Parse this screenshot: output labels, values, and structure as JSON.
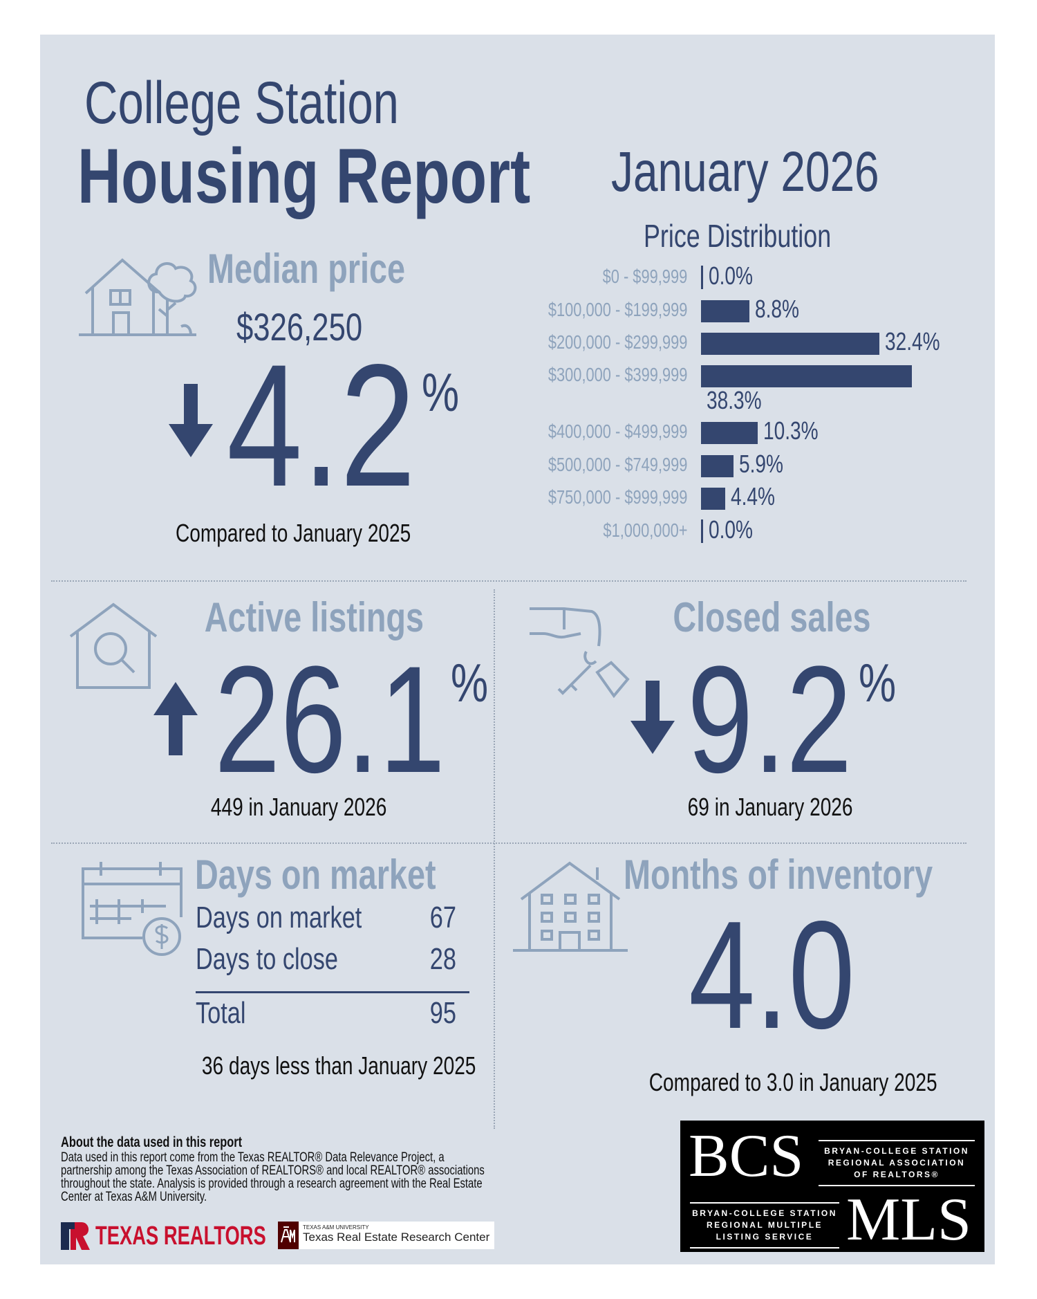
{
  "header": {
    "city": "College Station",
    "title": "Housing Report",
    "period": "January 2026"
  },
  "price_distribution": {
    "title": "Price Distribution",
    "rows": [
      {
        "label": "$0 - $99,999",
        "value": 0.0,
        "text": "0.0%"
      },
      {
        "label": "$100,000 - $199,999",
        "value": 8.8,
        "text": "8.8%"
      },
      {
        "label": "$200,000 - $299,999",
        "value": 32.4,
        "text": "32.4%"
      },
      {
        "label": "$300,000 - $399,999",
        "value": 38.3,
        "text": "38.3%"
      },
      {
        "label": "$400,000 - $499,999",
        "value": 10.3,
        "text": "10.3%"
      },
      {
        "label": "$500,000 - $749,999",
        "value": 5.9,
        "text": "5.9%"
      },
      {
        "label": "$750,000 - $999,999",
        "value": 4.4,
        "text": "4.4%"
      },
      {
        "label": "$1,000,000+",
        "value": 0.0,
        "text": "0.0%"
      }
    ]
  },
  "median": {
    "title": "Median price",
    "price": "$326,250",
    "change": "4.2",
    "pct": "%",
    "direction": "down",
    "note": "Compared to January 2025"
  },
  "active": {
    "title": "Active listings",
    "change": "26.1",
    "pct": "%",
    "direction": "up",
    "note": "449 in January 2026"
  },
  "closed": {
    "title": "Closed sales",
    "change": "9.2",
    "pct": "%",
    "direction": "down",
    "note": "69 in January 2026"
  },
  "dom": {
    "title": "Days on market",
    "rows": [
      {
        "label": "Days on market",
        "value": "67"
      },
      {
        "label": "Days to close",
        "value": "28"
      }
    ],
    "total_label": "Total",
    "total_value": "95",
    "note": "36 days less than January 2025"
  },
  "inventory": {
    "title": "Months of inventory",
    "value": "4.0",
    "note": "Compared to 3.0 in January 2025"
  },
  "about": {
    "title": "About the data used in this report",
    "body": "Data used in this report come from the Texas REALTOR® Data Relevance Project, a partnership among the Texas Association of REALTORS® and local REALTOR® associations throughout the state. Analysis is provided through a research agreement with the Real Estate Center at Texas A&M University."
  },
  "logos": {
    "texas_realtors": "TEXAS REALTORS",
    "tamu_small": "TEXAS A&M UNIVERSITY",
    "tamu_center": "Texas Real Estate Research Center",
    "bcs": "BCS",
    "bcs_assoc": [
      "BRYAN-COLLEGE STATION",
      "REGIONAL ASSOCIATION",
      "OF REALTORS®"
    ],
    "mls": "MLS",
    "mls_desc": [
      "BRYAN-COLLEGE STATION",
      "REGIONAL MULTIPLE",
      "LISTING SERVICE"
    ]
  },
  "colors": {
    "navy": "#34466f",
    "light": "#8ea3bc",
    "panel": "#dae0e8"
  }
}
